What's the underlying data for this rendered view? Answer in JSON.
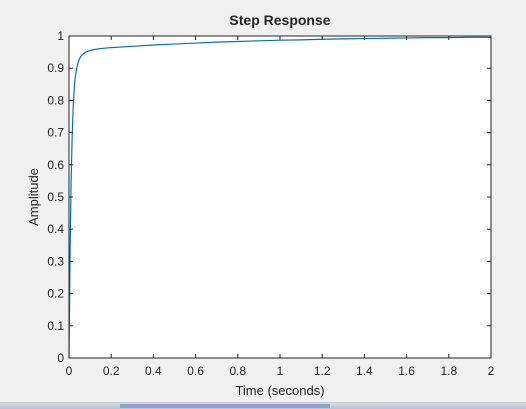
{
  "chart_data": {
    "type": "line",
    "title": "Step Response",
    "xlabel": "Time (seconds)",
    "ylabel": "Amplitude",
    "xlim": [
      0,
      2
    ],
    "ylim": [
      0,
      1
    ],
    "xticks": [
      0,
      0.2,
      0.4,
      0.6,
      0.8,
      1,
      1.2,
      1.4,
      1.6,
      1.8,
      2
    ],
    "xtick_labels": [
      "0",
      "0.2",
      "0.4",
      "0.6",
      "0.8",
      "1",
      "1.2",
      "1.4",
      "1.6",
      "1.8",
      "2"
    ],
    "yticks": [
      0,
      0.1,
      0.2,
      0.3,
      0.4,
      0.5,
      0.6,
      0.7,
      0.8,
      0.9,
      1
    ],
    "ytick_labels": [
      "0",
      "0.1",
      "0.2",
      "0.3",
      "0.4",
      "0.5",
      "0.6",
      "0.7",
      "0.8",
      "0.9",
      "1"
    ],
    "grid": false,
    "reference_line": 1,
    "series": [
      {
        "color": "#0072bd",
        "x": [
          0,
          0.002,
          0.005,
          0.01,
          0.015,
          0.02,
          0.025,
          0.03,
          0.04,
          0.05,
          0.06,
          0.07,
          0.08,
          0.1,
          0.12,
          0.15,
          0.2,
          0.3,
          0.4,
          0.5,
          0.6,
          0.7,
          0.8,
          0.9,
          1.0,
          1.1,
          1.2,
          1.3,
          1.4,
          1.5,
          1.6,
          1.7,
          1.8,
          1.9,
          2.0
        ],
        "y": [
          0,
          0.12,
          0.32,
          0.55,
          0.69,
          0.78,
          0.84,
          0.875,
          0.91,
          0.93,
          0.94,
          0.946,
          0.95,
          0.955,
          0.958,
          0.961,
          0.964,
          0.968,
          0.972,
          0.975,
          0.978,
          0.981,
          0.983,
          0.985,
          0.987,
          0.988,
          0.99,
          0.991,
          0.992,
          0.993,
          0.994,
          0.995,
          0.995,
          0.996,
          0.996
        ]
      }
    ]
  }
}
